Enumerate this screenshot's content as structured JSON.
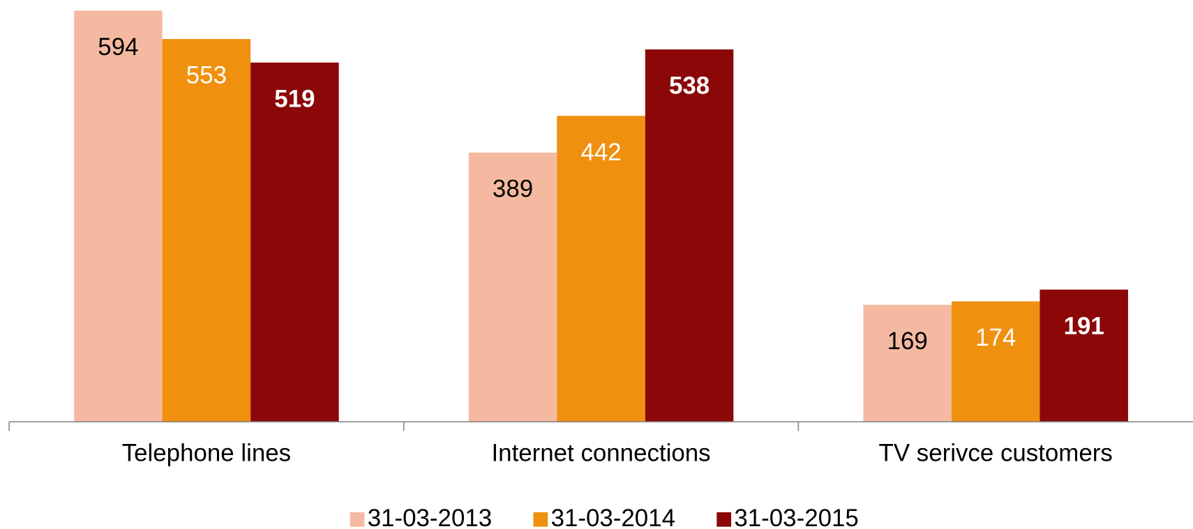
{
  "chart_data": {
    "type": "bar",
    "categories": [
      "Telephone lines",
      "Internet connections",
      "TV serivce customers"
    ],
    "series": [
      {
        "name": "31-03-2013",
        "color": "#f5b9a1",
        "values": [
          594,
          389,
          169
        ]
      },
      {
        "name": "31-03-2014",
        "color": "#f0900f",
        "values": [
          553,
          442,
          174
        ]
      },
      {
        "name": "31-03-2015",
        "color": "#8b0708",
        "values": [
          519,
          538,
          191
        ]
      }
    ],
    "legend": "bottom"
  }
}
